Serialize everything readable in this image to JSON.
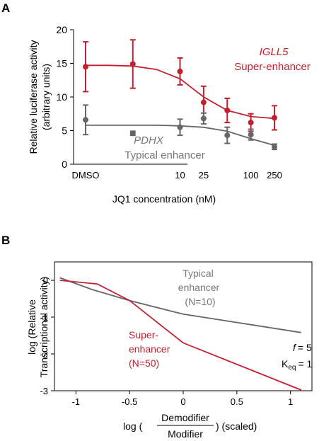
{
  "panel_labels": [
    "A",
    "B"
  ],
  "colors": {
    "red": "#c2202e",
    "gray": "#666666",
    "black": "#000000"
  },
  "chart_data": [
    {
      "type": "line",
      "panel": "A",
      "title": "",
      "xlabel": "JQ1 concentration (nM)",
      "ylabel_line1": "Relative luciferase activity",
      "ylabel_line2": "(arbitrary units)",
      "ylim": [
        0,
        20
      ],
      "y_ticks": [
        0,
        5,
        10,
        15,
        20
      ],
      "x_tick_labels": [
        "DMSO",
        "10",
        "25",
        "100",
        "250"
      ],
      "x_tick_positions": [
        0,
        4,
        5,
        7,
        8
      ],
      "series": [
        {
          "name": "Super-enhancer",
          "gene": "IGLL5",
          "color": "#c2202e",
          "x": [
            0,
            2,
            4,
            5,
            6,
            7,
            8
          ],
          "y": [
            14.5,
            14.9,
            13.8,
            9.2,
            8.0,
            6.2,
            6.9
          ],
          "err": [
            3.7,
            3.6,
            2.0,
            2.4,
            1.8,
            1.3,
            1.8
          ],
          "fit": [
            14.7,
            14.7,
            14.6,
            14.1,
            12.7,
            10.0,
            8.0,
            7.1,
            6.8
          ]
        },
        {
          "name": "Typical enhancer",
          "gene": "PDHX",
          "color": "#666666",
          "x": [
            0,
            2,
            4,
            5,
            6,
            7,
            8
          ],
          "y": [
            6.6,
            4.6,
            5.5,
            6.8,
            4.3,
            4.4,
            2.6
          ],
          "err": [
            2.2,
            0.3,
            1.2,
            0.8,
            1.2,
            0.8,
            0.4
          ],
          "fit": [
            5.8,
            5.8,
            5.8,
            5.8,
            5.7,
            5.5,
            4.9,
            3.8,
            2.8
          ]
        }
      ]
    },
    {
      "type": "line",
      "panel": "B",
      "title": "",
      "xlabel_prefix": "log (",
      "xlabel_num": "Demodifier",
      "xlabel_den": "Modifier",
      "xlabel_suffix": ") (scaled)",
      "ylabel_line1": "log (Relative",
      "ylabel_line2": "Transcriptional activity)",
      "xlim": [
        -1.2,
        1.2
      ],
      "ylim": [
        -3,
        0.5
      ],
      "x_ticks": [
        -1,
        -0.5,
        0,
        0.5,
        1
      ],
      "x_tick_labels": [
        "-1",
        "-0.5",
        "0",
        "0.5",
        "1"
      ],
      "y_ticks": [
        0,
        -1,
        -2,
        -3
      ],
      "y_tick_labels": [
        "0",
        "-1",
        "-2",
        "-3"
      ],
      "series": [
        {
          "name_line1": "Typical",
          "name_line2": "enhancer",
          "name_line3": "(N=10)",
          "color": "#666666",
          "x": [
            -1.15,
            -0.85,
            -0.5,
            0,
            1.1
          ],
          "y": [
            0.07,
            -0.25,
            -0.55,
            -0.92,
            -1.42
          ]
        },
        {
          "name_line1": "Super-",
          "name_line2": "enhancer",
          "name_line3": "(N=50)",
          "color": "#c2202e",
          "x": [
            -1.15,
            -0.8,
            -0.5,
            0,
            1.1
          ],
          "y": [
            0.0,
            -0.1,
            -0.55,
            -1.7,
            -2.98
          ]
        }
      ],
      "params": {
        "f_label": "f",
        "f_value": "= 5",
        "k_label": "K",
        "k_sub": "eq",
        "k_value": "= 1"
      }
    }
  ]
}
